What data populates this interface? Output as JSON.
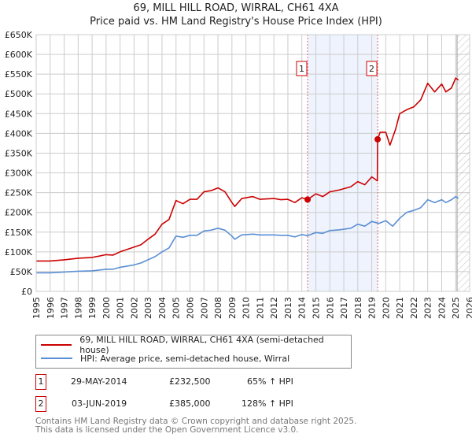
{
  "chart_data": {
    "type": "line",
    "title": "69, MILL HILL ROAD, WIRRAL, CH61 4XA",
    "subtitle": "Price paid vs. HM Land Registry's House Price Index (HPI)",
    "xlim": [
      1995,
      2026
    ],
    "ylim": [
      0,
      650000
    ],
    "x_ticks": [
      "1995",
      "1996",
      "1997",
      "1998",
      "1999",
      "2000",
      "2001",
      "2002",
      "2003",
      "2004",
      "2005",
      "2006",
      "2007",
      "2008",
      "2009",
      "2010",
      "2011",
      "2012",
      "2013",
      "2014",
      "2015",
      "2016",
      "2017",
      "2018",
      "2019",
      "2020",
      "2021",
      "2022",
      "2023",
      "2024",
      "2025",
      "2026"
    ],
    "y_ticks": [
      {
        "v": 0,
        "label": "£0"
      },
      {
        "v": 50000,
        "label": "£50K"
      },
      {
        "v": 100000,
        "label": "£100K"
      },
      {
        "v": 150000,
        "label": "£150K"
      },
      {
        "v": 200000,
        "label": "£200K"
      },
      {
        "v": 250000,
        "label": "£250K"
      },
      {
        "v": 300000,
        "label": "£300K"
      },
      {
        "v": 350000,
        "label": "£350K"
      },
      {
        "v": 400000,
        "label": "£400K"
      },
      {
        "v": 450000,
        "label": "£450K"
      },
      {
        "v": 500000,
        "label": "£500K"
      },
      {
        "v": 550000,
        "label": "£550K"
      },
      {
        "v": 600000,
        "label": "£600K"
      },
      {
        "v": 650000,
        "label": "£650K"
      }
    ],
    "grid": true,
    "series": [
      {
        "name": "69, MILL HILL ROAD, WIRRAL, CH61 4XA (semi-detached house)",
        "color": "#cc0000",
        "x": [
          1995,
          1996,
          1997,
          1998,
          1999,
          2000,
          2000.5,
          2001,
          2002,
          2002.5,
          2003,
          2003.5,
          2004,
          2004.5,
          2005,
          2005.5,
          2006,
          2006.5,
          2007,
          2007.5,
          2008,
          2008.5,
          2009,
          2009.2,
          2009.7,
          2010.5,
          2011,
          2012,
          2012.5,
          2013,
          2013.5,
          2014,
          2014.41,
          2015,
          2015.5,
          2016,
          2016.7,
          2017.5,
          2018,
          2018.5,
          2019,
          2019.4,
          2019.42,
          2019.6,
          2020,
          2020.3,
          2020.7,
          2021,
          2021.5,
          2022,
          2022.5,
          2023,
          2023.5,
          2024,
          2024.3,
          2024.7,
          2025,
          2025.2
        ],
        "y": [
          77000,
          77000,
          80000,
          84000,
          86000,
          93000,
          92000,
          100000,
          112000,
          118000,
          132000,
          145000,
          170000,
          182000,
          230000,
          222000,
          233000,
          233000,
          252000,
          255000,
          262000,
          252000,
          225000,
          215000,
          235000,
          240000,
          233000,
          235000,
          232000,
          233000,
          225000,
          237000,
          232500,
          247000,
          240000,
          252000,
          257000,
          265000,
          278000,
          270000,
          290000,
          280000,
          385000,
          403000,
          403000,
          370000,
          410000,
          450000,
          460000,
          467000,
          485000,
          527000,
          505000,
          525000,
          505000,
          515000,
          540000,
          535000
        ]
      },
      {
        "name": "HPI: Average price, semi-detached house, Wirral",
        "color": "#5b8fd4",
        "x": [
          1995,
          1996,
          1997,
          1998,
          1999,
          2000,
          2000.5,
          2001,
          2002,
          2002.5,
          2003,
          2003.5,
          2004,
          2004.5,
          2005,
          2005.5,
          2006,
          2006.5,
          2007,
          2007.5,
          2008,
          2008.5,
          2009,
          2009.2,
          2009.7,
          2010.5,
          2011,
          2012,
          2012.5,
          2013,
          2013.5,
          2014,
          2014.41,
          2015,
          2015.5,
          2016,
          2016.7,
          2017.5,
          2018,
          2018.5,
          2019,
          2019.5,
          2020,
          2020.5,
          2021,
          2021.5,
          2022,
          2022.5,
          2023,
          2023.5,
          2024,
          2024.3,
          2024.7,
          2025,
          2025.2
        ],
        "y": [
          47000,
          47000,
          49000,
          51000,
          52000,
          56000,
          56000,
          61000,
          67000,
          72000,
          80000,
          88000,
          100000,
          110000,
          140000,
          137000,
          142000,
          142000,
          153000,
          155000,
          160000,
          155000,
          140000,
          132000,
          143000,
          145000,
          143000,
          143000,
          142000,
          142000,
          138000,
          144000,
          141000,
          149000,
          147000,
          154000,
          156000,
          160000,
          170000,
          165000,
          177000,
          172000,
          179000,
          165000,
          185000,
          200000,
          205000,
          212000,
          232000,
          225000,
          232000,
          225000,
          232000,
          240000,
          235000
        ]
      }
    ],
    "sales": [
      {
        "num": "1",
        "x": 2014.41,
        "date": "29-MAY-2014",
        "price": "£232,500",
        "value": 232500,
        "hpi": "65% ↑ HPI"
      },
      {
        "num": "2",
        "x": 2019.42,
        "date": "03-JUN-2019",
        "price": "£385,000",
        "value": 385000,
        "hpi": "128% ↑ HPI"
      }
    ],
    "forecast_start": 2025.1
  },
  "footer": {
    "line1": "Contains HM Land Registry data © Crown copyright and database right 2025.",
    "line2": "This data is licensed under the Open Government Licence v3.0."
  }
}
